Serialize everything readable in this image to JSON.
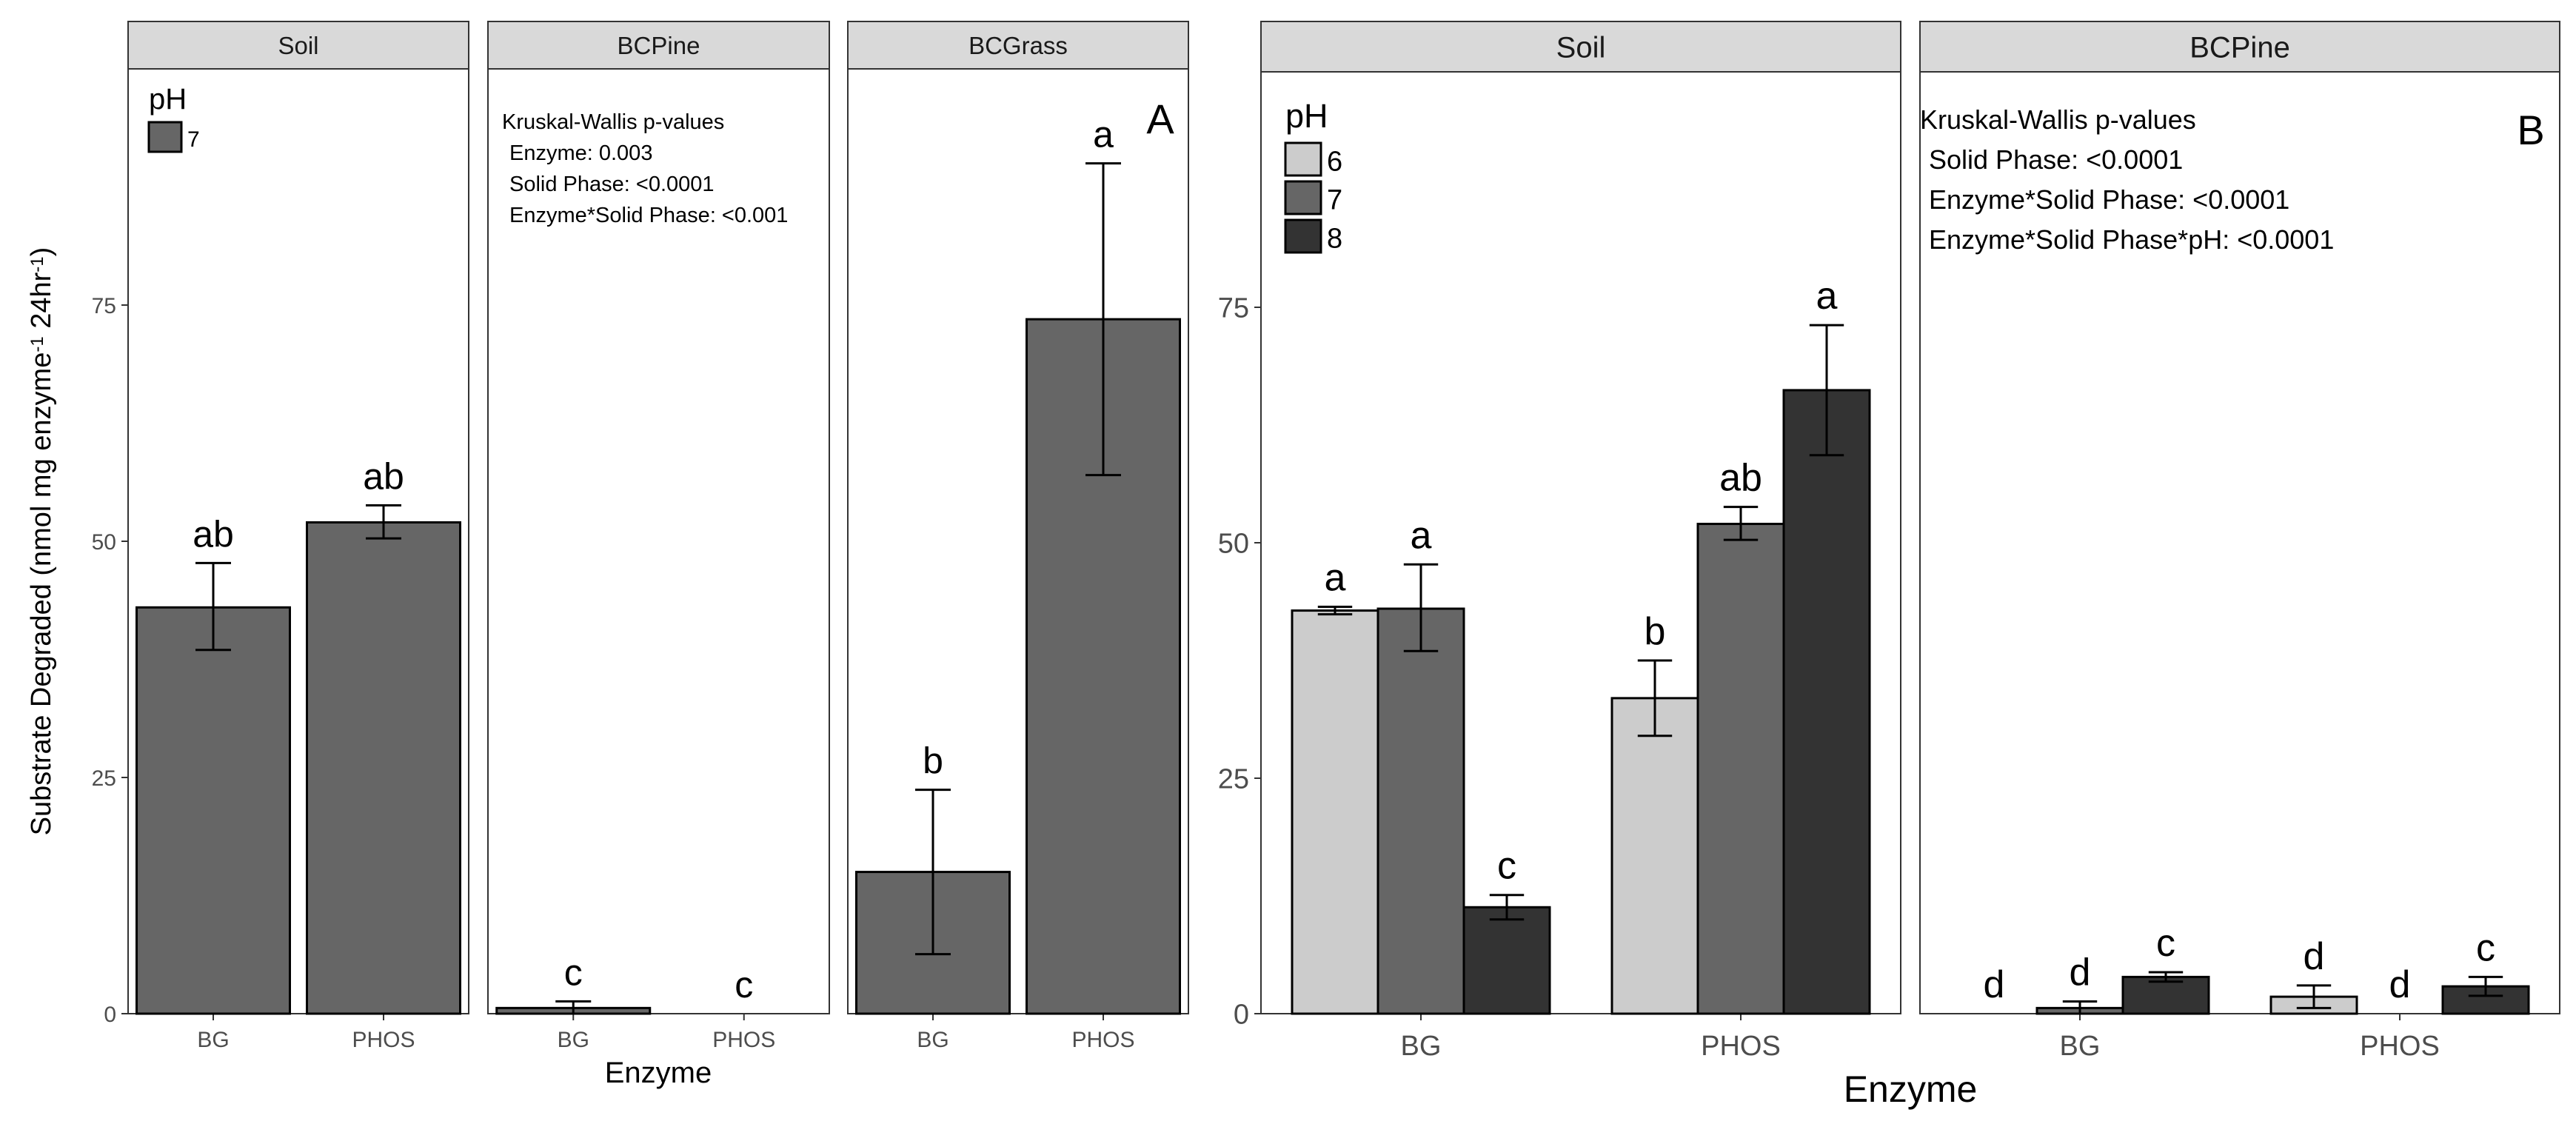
{
  "chart_data": [
    {
      "type": "bar",
      "panel_label": "A",
      "ylabel": "Substrate Degraded  (nmol  mg enzyme",
      "ylabel_sup1": "-1",
      "ylabel_mid": " 24hr",
      "ylabel_sup2": "-1",
      "ylabel_end": ")",
      "xlabel": "Enzyme",
      "ylim": [
        0,
        100
      ],
      "yticks": [
        0,
        25,
        50,
        75
      ],
      "categories": [
        "BG",
        "PHOS"
      ],
      "legend": {
        "title": "pH",
        "entries": [
          {
            "label": "7",
            "color": "#666666"
          }
        ]
      },
      "colors": {
        "7": "#666666"
      },
      "note_lines": [
        "Kruskal-Wallis p-values",
        "Enzyme: 0.003",
        "Solid Phase: <0.0001",
        "Enzyme*Solid Phase: <0.001"
      ],
      "facets": [
        {
          "title": "Soil",
          "bars": [
            {
              "category": "BG",
              "ph": "7",
              "value": 43.0,
              "err_low": 38.5,
              "err_high": 47.7,
              "letter": "ab"
            },
            {
              "category": "PHOS",
              "ph": "7",
              "value": 52.0,
              "err_low": 50.3,
              "err_high": 53.8,
              "letter": "ab"
            }
          ]
        },
        {
          "title": "BCPine",
          "bars": [
            {
              "category": "BG",
              "ph": "7",
              "value": 0.6,
              "err_low": 0.0,
              "err_high": 1.3,
              "letter": "c"
            },
            {
              "category": "PHOS",
              "ph": "7",
              "value": 0.0,
              "err_low": 0.0,
              "err_high": 0.0,
              "letter": "c"
            }
          ]
        },
        {
          "title": "BCGrass",
          "bars": [
            {
              "category": "BG",
              "ph": "7",
              "value": 15.0,
              "err_low": 6.3,
              "err_high": 23.7,
              "letter": "b"
            },
            {
              "category": "PHOS",
              "ph": "7",
              "value": 73.5,
              "err_low": 57.0,
              "err_high": 90.0,
              "letter": "a"
            }
          ]
        }
      ]
    },
    {
      "type": "bar",
      "panel_label": "B",
      "xlabel": "Enzyme",
      "ylim": [
        0,
        100
      ],
      "yticks": [
        0,
        25,
        50,
        75
      ],
      "categories": [
        "BG",
        "PHOS"
      ],
      "legend": {
        "title": "pH",
        "entries": [
          {
            "label": "6",
            "color": "#cccccc"
          },
          {
            "label": "7",
            "color": "#666666"
          },
          {
            "label": "8",
            "color": "#333333"
          }
        ]
      },
      "colors": {
        "6": "#cccccc",
        "7": "#666666",
        "8": "#333333"
      },
      "note_lines": [
        "Kruskal-Wallis p-values",
        "Solid Phase: <0.0001",
        "Enzyme*Solid Phase: <0.0001",
        "Enzyme*Solid Phase*pH: <0.0001"
      ],
      "facets": [
        {
          "title": "Soil",
          "bars": [
            {
              "category": "BG",
              "ph": "6",
              "value": 42.8,
              "err_low": 42.4,
              "err_high": 43.2,
              "letter": "a"
            },
            {
              "category": "BG",
              "ph": "7",
              "value": 43.0,
              "err_low": 38.5,
              "err_high": 47.7,
              "letter": "a"
            },
            {
              "category": "BG",
              "ph": "8",
              "value": 11.3,
              "err_low": 10.0,
              "err_high": 12.6,
              "letter": "c"
            },
            {
              "category": "PHOS",
              "ph": "6",
              "value": 33.5,
              "err_low": 29.5,
              "err_high": 37.5,
              "letter": "b"
            },
            {
              "category": "PHOS",
              "ph": "7",
              "value": 52.0,
              "err_low": 50.3,
              "err_high": 53.8,
              "letter": "ab"
            },
            {
              "category": "PHOS",
              "ph": "8",
              "value": 66.2,
              "err_low": 59.3,
              "err_high": 73.1,
              "letter": "a"
            }
          ]
        },
        {
          "title": "BCPine",
          "bars": [
            {
              "category": "BG",
              "ph": "6",
              "value": 0.0,
              "err_low": 0.0,
              "err_high": 0.0,
              "letter": "d"
            },
            {
              "category": "BG",
              "ph": "7",
              "value": 0.6,
              "err_low": 0.0,
              "err_high": 1.3,
              "letter": "d"
            },
            {
              "category": "BG",
              "ph": "8",
              "value": 3.9,
              "err_low": 3.4,
              "err_high": 4.4,
              "letter": "c"
            },
            {
              "category": "PHOS",
              "ph": "6",
              "value": 1.8,
              "err_low": 0.6,
              "err_high": 3.0,
              "letter": "d"
            },
            {
              "category": "PHOS",
              "ph": "7",
              "value": 0.0,
              "err_low": 0.0,
              "err_high": 0.0,
              "letter": "d"
            },
            {
              "category": "PHOS",
              "ph": "8",
              "value": 2.9,
              "err_low": 1.9,
              "err_high": 3.9,
              "letter": "c"
            }
          ]
        }
      ]
    }
  ]
}
